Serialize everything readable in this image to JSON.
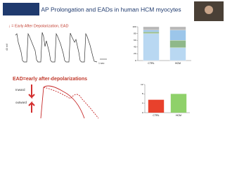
{
  "header": {
    "title": "AP Prolongation and EADs in human HCM myocytes"
  },
  "trace_panel": {
    "legend": "↓ = Early After Depolarization, EAD",
    "scale_v": "40 mV",
    "scale_t": "1 sec"
  },
  "ead_panel": {
    "title": "EAD=early after-depolarizations",
    "inward": "Inward",
    "outward": "outward"
  },
  "stacked_chart": {
    "categories": [
      "CTRL",
      "HCM"
    ],
    "series": [
      {
        "color": "#b9d8f2",
        "values": [
          80,
          38
        ]
      },
      {
        "color": "#8fb88a",
        "values": [
          5,
          22
        ]
      },
      {
        "color": "#9cc6ea",
        "values": [
          5,
          30
        ]
      },
      {
        "color": "#b8b8b8",
        "values": [
          10,
          10
        ]
      }
    ],
    "ylim": [
      0,
      100
    ],
    "yticks": [
      0,
      20,
      40,
      60,
      80,
      100
    ]
  },
  "bar_chart": {
    "categories": [
      "CTRL",
      "HCM"
    ],
    "colors": [
      "#e8412c",
      "#8fd16a"
    ],
    "values": [
      5.5,
      8
    ],
    "ylim": [
      0,
      12
    ],
    "yticks": [
      0,
      4,
      8,
      12
    ]
  }
}
